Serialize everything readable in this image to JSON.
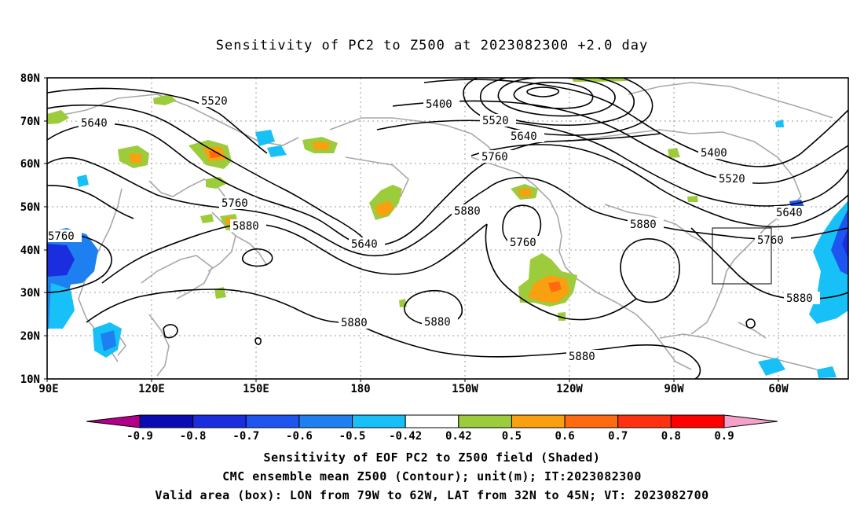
{
  "title": "Sensitivity of PC2 to Z500 at 2023082300 +2.0 day",
  "lat_labels": [
    "80N",
    "70N",
    "60N",
    "50N",
    "40N",
    "30N",
    "20N",
    "10N"
  ],
  "lon_labels": [
    "90E",
    "120E",
    "150E",
    "180",
    "150W",
    "120W",
    "90W",
    "60W"
  ],
  "contour_labels": {
    "c5520a": "5520",
    "c5640a": "5640",
    "c5400a": "5400",
    "c5520b": "5520",
    "c5640b": "5640",
    "c5760a": "5760",
    "c5400b": "5400",
    "c5520c": "5520",
    "c5640c": "5640",
    "c5760b": "5760",
    "c5880a": "5880",
    "c5760c": "5760",
    "c5880b": "5880",
    "c5640d": "5640",
    "c5760d": "5760",
    "c5880c": "5880",
    "c5880d": "5880",
    "c5880e": "5880",
    "c5880f": "5880",
    "c5880g": "5880"
  },
  "colorbar": {
    "labels": [
      "-0.9",
      "-0.8",
      "-0.7",
      "-0.6",
      "-0.5",
      "-0.42",
      "0.42",
      "0.5",
      "0.6",
      "0.7",
      "0.8",
      "0.9"
    ],
    "colors": [
      "#b0008a",
      "#0b0bb5",
      "#1a2ee0",
      "#1e55f0",
      "#1e80f0",
      "#18c0f8",
      "#ffffff",
      "#9ccc3c",
      "#f8a010",
      "#ff6a10",
      "#ff3010",
      "#ff0000",
      "#f4a0c8"
    ]
  },
  "captions": {
    "line1": "Sensitivity of EOF PC2 to Z500 field (Shaded)",
    "line2": "CMC ensemble mean Z500 (Contour); unit(m); IT:2023082300",
    "line3": "Valid area (box): LON from 79W to 62W, LAT from 32N to 45N; VT: 2023082700"
  }
}
